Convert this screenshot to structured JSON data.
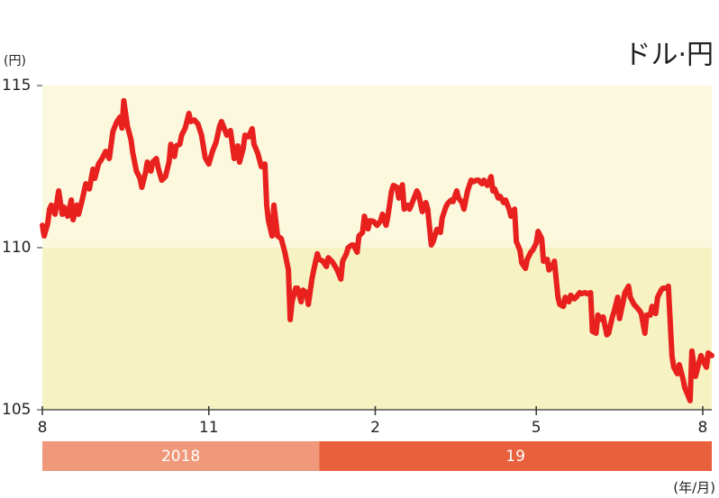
{
  "chart_data": {
    "type": "line",
    "title": "ドル·円",
    "y_unit": "(円)",
    "x_unit": "(年/月)",
    "xlim": [
      0,
      370
    ],
    "xticks": [
      {
        "value": 0,
        "label": "8"
      },
      {
        "value": 92,
        "label": "11"
      },
      {
        "value": 184,
        "label": "2"
      },
      {
        "value": 273,
        "label": "5"
      },
      {
        "value": 365,
        "label": "8"
      }
    ],
    "ylim": [
      105,
      115
    ],
    "yticks": [
      105,
      110,
      115
    ],
    "band_colors": [
      "#f6f2c2",
      "#fbf8de"
    ],
    "periods": [
      {
        "label": "2018",
        "from": 0,
        "to": 153,
        "color": "#f0997a"
      },
      {
        "label": "19",
        "from": 153,
        "to": 370,
        "color": "#e8603c"
      }
    ],
    "x": [
      0,
      1,
      3,
      4,
      5,
      7,
      9,
      11,
      12,
      14,
      16,
      17,
      19,
      20,
      22,
      24,
      26,
      28,
      29,
      31,
      33,
      35,
      37,
      39,
      41,
      43,
      44,
      45,
      47,
      49,
      50,
      52,
      54,
      55,
      57,
      58,
      60,
      61,
      63,
      64,
      66,
      68,
      70,
      71,
      73,
      74,
      76,
      77,
      79,
      81,
      82,
      84,
      86,
      88,
      90,
      92,
      94,
      96,
      98,
      99,
      101,
      102,
      104,
      106,
      108,
      109,
      111,
      112,
      114,
      116,
      117,
      119,
      121,
      123,
      124,
      125,
      127,
      128,
      130,
      132,
      134,
      136,
      137,
      138,
      140,
      141,
      143,
      144,
      146,
      147,
      149,
      150,
      152,
      153,
      155,
      157,
      158,
      160,
      161,
      163,
      165,
      166,
      168,
      169,
      171,
      172,
      174,
      175,
      177,
      178,
      180,
      181,
      183,
      185,
      187,
      188,
      190,
      191,
      193,
      194,
      196,
      197,
      199,
      200,
      202,
      203,
      205,
      207,
      208,
      210,
      212,
      213,
      215,
      216,
      218,
      220,
      221,
      223,
      224,
      226,
      227,
      229,
      230,
      232,
      233,
      235,
      237,
      238,
      240,
      241,
      243,
      244,
      246,
      248,
      249,
      250,
      252,
      253,
      255,
      256,
      258,
      259,
      261,
      262,
      264,
      265,
      267,
      268,
      270,
      271,
      273,
      274,
      276,
      277,
      279,
      280,
      282,
      283,
      285,
      286,
      288,
      289,
      291,
      292,
      294,
      295,
      297,
      298,
      300,
      301,
      303,
      304,
      306,
      307,
      309,
      310,
      312,
      313,
      315,
      316,
      318,
      319,
      321,
      322,
      324,
      325,
      327,
      328,
      330,
      331,
      333,
      334,
      336,
      337,
      339,
      340,
      342,
      343,
      345,
      346,
      348,
      349,
      351,
      352,
      354,
      355,
      357,
      358,
      359,
      361,
      362,
      364,
      365,
      367,
      368,
      370
    ],
    "series": [
      {
        "color": "#e8201e",
        "values": [
          110.69,
          110.36,
          110.75,
          111.19,
          111.31,
          111.03,
          111.75,
          111.03,
          111.25,
          110.97,
          111.47,
          110.86,
          111.31,
          111.03,
          111.47,
          111.97,
          111.81,
          112.42,
          112.14,
          112.58,
          112.75,
          112.97,
          112.75,
          113.58,
          113.86,
          114.03,
          113.69,
          114.53,
          113.75,
          113.33,
          112.92,
          112.36,
          112.14,
          111.86,
          112.31,
          112.64,
          112.36,
          112.64,
          112.75,
          112.47,
          112.08,
          112.19,
          112.64,
          113.19,
          112.81,
          113.14,
          113.19,
          113.47,
          113.69,
          114.14,
          113.89,
          113.94,
          113.81,
          113.47,
          112.78,
          112.58,
          112.97,
          113.25,
          113.75,
          113.89,
          113.61,
          113.47,
          113.61,
          112.75,
          113.14,
          112.64,
          113.06,
          113.47,
          113.42,
          113.67,
          113.19,
          112.92,
          112.5,
          112.58,
          111.31,
          110.83,
          110.36,
          111.31,
          110.36,
          110.28,
          109.86,
          109.31,
          107.78,
          108.33,
          108.75,
          108.75,
          108.33,
          108.69,
          108.61,
          108.25,
          109.03,
          109.31,
          109.81,
          109.64,
          109.58,
          109.42,
          109.69,
          109.58,
          109.5,
          109.31,
          109.03,
          109.58,
          109.81,
          110,
          110.08,
          110.08,
          109.86,
          110.36,
          110.47,
          110.97,
          110.58,
          110.83,
          110.81,
          110.69,
          110.83,
          111.03,
          110.69,
          110.97,
          111.75,
          111.92,
          111.86,
          111.53,
          111.94,
          111.19,
          111.31,
          111.19,
          111.47,
          111.75,
          111.64,
          111.11,
          111.39,
          111.19,
          110.08,
          110.19,
          110.56,
          110.47,
          110.92,
          111.25,
          111.36,
          111.47,
          111.42,
          111.75,
          111.53,
          111.39,
          111.19,
          111.75,
          112.08,
          112.03,
          112.08,
          112.08,
          111.97,
          112.08,
          111.92,
          112.19,
          111.75,
          111.81,
          111.53,
          111.58,
          111.39,
          111.47,
          111.19,
          110.97,
          111.19,
          110.19,
          109.92,
          109.53,
          109.36,
          109.64,
          109.86,
          109.92,
          110.14,
          110.5,
          110.28,
          109.58,
          109.64,
          109.31,
          109.44,
          109.58,
          108.47,
          108.25,
          108.19,
          108.47,
          108.33,
          108.53,
          108.42,
          108.47,
          108.61,
          108.58,
          108.61,
          108.58,
          108.61,
          107.42,
          107.36,
          107.92,
          107.78,
          107.86,
          107.31,
          107.36,
          107.86,
          108.03,
          108.47,
          107.81,
          108.33,
          108.61,
          108.81,
          108.47,
          108.25,
          108.19,
          108.06,
          107.97,
          107.36,
          107.92,
          107.92,
          108.19,
          107.97,
          108.47,
          108.69,
          108.75,
          108.75,
          108.81,
          106.67,
          106.31,
          106.11,
          106.39,
          105.97,
          105.69,
          105.42,
          105.28,
          106.81,
          106.03,
          106.25,
          106.67,
          106.53,
          106.31,
          106.75,
          106.67
        ]
      }
    ]
  }
}
